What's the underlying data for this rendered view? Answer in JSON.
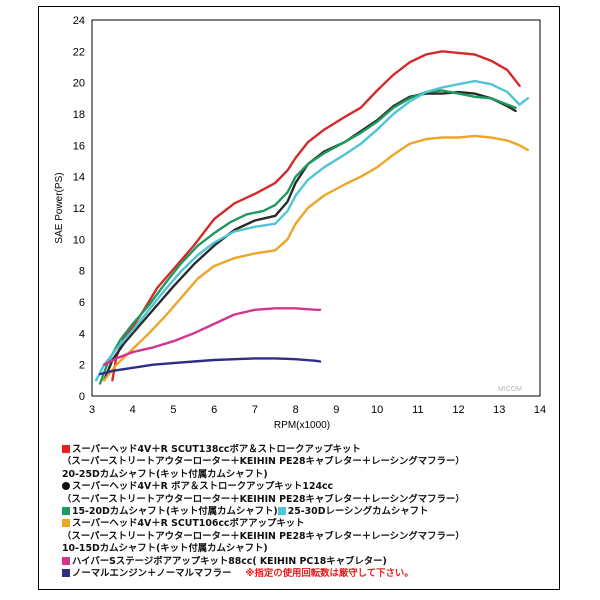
{
  "chart_data": {
    "type": "line",
    "title": "",
    "xlabel": "RPM(x1000)",
    "ylabel": "SAE Power(PS)",
    "xlim": [
      3,
      14
    ],
    "ylim": [
      0,
      24
    ],
    "xticks": [
      3,
      4,
      5,
      6,
      7,
      8,
      9,
      10,
      11,
      12,
      13,
      14
    ],
    "yticks": [
      0,
      2,
      4,
      6,
      8,
      10,
      12,
      14,
      16,
      18,
      20,
      22,
      24
    ],
    "grid": false,
    "series": [
      {
        "color": "#d42a2a",
        "points": [
          [
            3.5,
            1.0
          ],
          [
            3.6,
            2.5
          ],
          [
            3.8,
            3.8
          ],
          [
            4.0,
            4.4
          ],
          [
            4.3,
            5.6
          ],
          [
            4.6,
            6.9
          ],
          [
            5.0,
            8.1
          ],
          [
            5.5,
            9.6
          ],
          [
            6.0,
            11.3
          ],
          [
            6.5,
            12.3
          ],
          [
            7.0,
            12.9
          ],
          [
            7.5,
            13.6
          ],
          [
            7.8,
            14.4
          ],
          [
            8.0,
            15.2
          ],
          [
            8.3,
            16.2
          ],
          [
            8.7,
            17.0
          ],
          [
            9.2,
            17.8
          ],
          [
            9.6,
            18.4
          ],
          [
            10.0,
            19.5
          ],
          [
            10.4,
            20.5
          ],
          [
            10.8,
            21.3
          ],
          [
            11.2,
            21.8
          ],
          [
            11.6,
            22.0
          ],
          [
            12.0,
            21.9
          ],
          [
            12.4,
            21.8
          ],
          [
            12.8,
            21.4
          ],
          [
            13.2,
            20.8
          ],
          [
            13.5,
            19.8
          ]
        ]
      },
      {
        "color": "#2a2a2a",
        "points": [
          [
            3.3,
            1.0
          ],
          [
            3.5,
            2.3
          ],
          [
            3.8,
            3.4
          ],
          [
            4.2,
            4.6
          ],
          [
            4.6,
            5.8
          ],
          [
            5.0,
            7.0
          ],
          [
            5.5,
            8.4
          ],
          [
            6.0,
            9.6
          ],
          [
            6.5,
            10.6
          ],
          [
            7.0,
            11.2
          ],
          [
            7.5,
            11.5
          ],
          [
            7.8,
            12.4
          ],
          [
            8.0,
            13.6
          ],
          [
            8.3,
            14.8
          ],
          [
            8.7,
            15.6
          ],
          [
            9.2,
            16.2
          ],
          [
            9.6,
            16.9
          ],
          [
            10.0,
            17.6
          ],
          [
            10.4,
            18.5
          ],
          [
            10.8,
            19.1
          ],
          [
            11.2,
            19.3
          ],
          [
            11.6,
            19.3
          ],
          [
            12.0,
            19.4
          ],
          [
            12.4,
            19.3
          ],
          [
            12.8,
            19.0
          ],
          [
            13.2,
            18.5
          ],
          [
            13.4,
            18.2
          ]
        ]
      },
      {
        "color": "#1f9a5f",
        "points": [
          [
            3.2,
            0.8
          ],
          [
            3.4,
            2.2
          ],
          [
            3.7,
            3.6
          ],
          [
            4.0,
            4.6
          ],
          [
            4.4,
            5.8
          ],
          [
            4.8,
            7.2
          ],
          [
            5.2,
            8.5
          ],
          [
            5.6,
            9.6
          ],
          [
            6.0,
            10.4
          ],
          [
            6.4,
            11.1
          ],
          [
            6.8,
            11.6
          ],
          [
            7.2,
            11.8
          ],
          [
            7.5,
            12.2
          ],
          [
            7.8,
            13.0
          ],
          [
            8.0,
            14.0
          ],
          [
            8.3,
            14.8
          ],
          [
            8.7,
            15.5
          ],
          [
            9.2,
            16.2
          ],
          [
            9.6,
            16.8
          ],
          [
            10.0,
            17.5
          ],
          [
            10.4,
            18.4
          ],
          [
            10.8,
            19.0
          ],
          [
            11.2,
            19.4
          ],
          [
            11.6,
            19.5
          ],
          [
            12.0,
            19.3
          ],
          [
            12.4,
            19.1
          ],
          [
            12.8,
            19.0
          ],
          [
            13.2,
            18.6
          ],
          [
            13.4,
            18.4
          ]
        ]
      },
      {
        "color": "#4fc4d6",
        "points": [
          [
            3.1,
            1.0
          ],
          [
            3.3,
            2.0
          ],
          [
            3.6,
            3.0
          ],
          [
            4.0,
            4.2
          ],
          [
            4.4,
            5.5
          ],
          [
            4.8,
            6.8
          ],
          [
            5.2,
            8.0
          ],
          [
            5.6,
            9.0
          ],
          [
            6.0,
            9.8
          ],
          [
            6.5,
            10.5
          ],
          [
            7.0,
            10.8
          ],
          [
            7.5,
            11.0
          ],
          [
            7.8,
            11.8
          ],
          [
            8.0,
            12.8
          ],
          [
            8.3,
            13.8
          ],
          [
            8.7,
            14.6
          ],
          [
            9.2,
            15.4
          ],
          [
            9.6,
            16.1
          ],
          [
            10.0,
            17.0
          ],
          [
            10.4,
            18.0
          ],
          [
            10.8,
            18.8
          ],
          [
            11.2,
            19.4
          ],
          [
            11.6,
            19.7
          ],
          [
            12.0,
            19.9
          ],
          [
            12.4,
            20.1
          ],
          [
            12.8,
            19.9
          ],
          [
            13.2,
            19.4
          ],
          [
            13.5,
            18.6
          ],
          [
            13.7,
            19.0
          ]
        ]
      },
      {
        "color": "#eda628",
        "points": [
          [
            3.3,
            1.0
          ],
          [
            3.6,
            2.0
          ],
          [
            4.0,
            3.0
          ],
          [
            4.4,
            4.0
          ],
          [
            4.8,
            5.1
          ],
          [
            5.2,
            6.3
          ],
          [
            5.6,
            7.5
          ],
          [
            6.0,
            8.3
          ],
          [
            6.5,
            8.8
          ],
          [
            7.0,
            9.1
          ],
          [
            7.5,
            9.3
          ],
          [
            7.8,
            10.0
          ],
          [
            8.0,
            11.0
          ],
          [
            8.3,
            12.0
          ],
          [
            8.7,
            12.8
          ],
          [
            9.2,
            13.5
          ],
          [
            9.6,
            14.0
          ],
          [
            10.0,
            14.6
          ],
          [
            10.4,
            15.4
          ],
          [
            10.8,
            16.1
          ],
          [
            11.2,
            16.4
          ],
          [
            11.6,
            16.5
          ],
          [
            12.0,
            16.5
          ],
          [
            12.4,
            16.6
          ],
          [
            12.8,
            16.5
          ],
          [
            13.2,
            16.3
          ],
          [
            13.5,
            16.0
          ],
          [
            13.7,
            15.7
          ]
        ]
      },
      {
        "color": "#d2358f",
        "points": [
          [
            3.3,
            2.0
          ],
          [
            3.6,
            2.4
          ],
          [
            4.0,
            2.8
          ],
          [
            4.5,
            3.1
          ],
          [
            5.0,
            3.5
          ],
          [
            5.5,
            4.0
          ],
          [
            6.0,
            4.6
          ],
          [
            6.5,
            5.2
          ],
          [
            7.0,
            5.5
          ],
          [
            7.5,
            5.6
          ],
          [
            8.0,
            5.6
          ],
          [
            8.5,
            5.5
          ],
          [
            8.6,
            5.5
          ]
        ]
      },
      {
        "color": "#2c2f86",
        "points": [
          [
            3.2,
            1.4
          ],
          [
            3.5,
            1.6
          ],
          [
            4.0,
            1.8
          ],
          [
            4.5,
            2.0
          ],
          [
            5.0,
            2.1
          ],
          [
            5.5,
            2.2
          ],
          [
            6.0,
            2.3
          ],
          [
            6.5,
            2.35
          ],
          [
            7.0,
            2.4
          ],
          [
            7.5,
            2.4
          ],
          [
            8.0,
            2.35
          ],
          [
            8.5,
            2.25
          ],
          [
            8.6,
            2.2
          ]
        ]
      }
    ]
  },
  "legend": [
    {
      "color": "#e82020",
      "marker": "square",
      "text": "スーパーヘッド4V＋R SCUT138ccボア＆ストロークアップキット"
    },
    {
      "text": "（スーパーストリートアウターローター＋KEIHIN PE28キャブレター＋レーシングマフラー）"
    },
    {
      "text": "20-25Dカムシャフト(キット付属カムシャフト)"
    },
    {
      "color": "#111111",
      "marker": "circle",
      "text": "スーパーヘッド4V＋R ボア＆ストロークアップキット124cc"
    },
    {
      "text": "（スーパーストリートアウターローター＋KEIHIN PE28キャブレター＋レーシングマフラー）"
    },
    {
      "color": "#1f9a5f",
      "marker": "square",
      "text": "15-20Dカムシャフト(キット付属カムシャフト)",
      "color2": "#4fc4d6",
      "text2": "25-30Dレーシングカムシャフト"
    },
    {
      "color": "#eda628",
      "marker": "square",
      "text": "スーパーヘッド4V＋R SCUT106ccボアアップキット"
    },
    {
      "text": "（スーパーストリートアウターローター＋KEIHIN PE28キャブレター＋レーシングマフラー）"
    },
    {
      "text": "10-15Dカムシャフト(キット付属カムシャフト)"
    },
    {
      "color": "#d2358f",
      "marker": "square",
      "text": "ハイパーSステージボアアップキット88cc( KEIHIN PC18キャブレター)"
    },
    {
      "color": "#2c2f86",
      "marker": "square",
      "text": "ノーマルエンジン＋ノーマルマフラー",
      "note": "※指定の使用回転数は厳守して下さい。"
    }
  ],
  "watermark": "MICOM"
}
